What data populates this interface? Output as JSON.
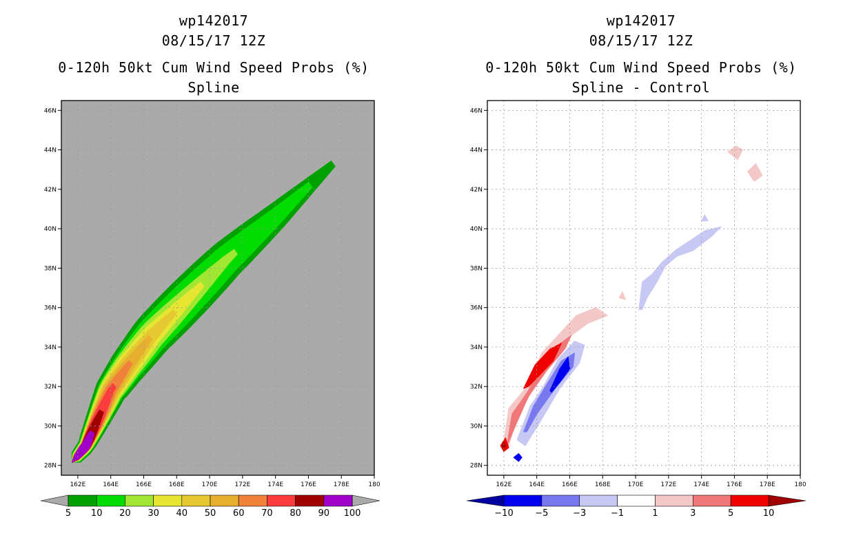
{
  "chart_data": [
    {
      "type": "filled-contour-map",
      "storm": "wp142017",
      "datetime": "08/15/17 12Z",
      "title": "0-120h 50kt Cum Wind Speed Probs (%)",
      "subtitle": "Spline",
      "units": "%",
      "background_color": "#aaaaaa",
      "x_axis": {
        "range": [
          161,
          180
        ],
        "ticks": [
          162,
          164,
          166,
          168,
          170,
          172,
          174,
          176,
          178,
          180
        ],
        "tick_labels": [
          "162E",
          "164E",
          "166E",
          "168E",
          "170E",
          "172E",
          "174E",
          "176E",
          "178E",
          "180"
        ]
      },
      "y_axis": {
        "range": [
          27.5,
          46.5
        ],
        "ticks": [
          28,
          30,
          32,
          34,
          36,
          38,
          40,
          42,
          44,
          46
        ],
        "tick_labels": [
          "28N",
          "30N",
          "32N",
          "34N",
          "36N",
          "38N",
          "40N",
          "42N",
          "44N",
          "46N"
        ]
      },
      "grid": true,
      "colorbar": {
        "levels": [
          "5",
          "10",
          "20",
          "30",
          "40",
          "50",
          "60",
          "70",
          "80",
          "90",
          "100"
        ],
        "colors": [
          "#00a000",
          "#00dc00",
          "#a0e632",
          "#e6e632",
          "#e6c832",
          "#e6af2d",
          "#f0823c",
          "#fa3c3c",
          "#a00000",
          "#a000c8"
        ],
        "under_color": "#aaaaaa",
        "over_color": "#aaaaaa"
      },
      "track": [
        [
          161.9,
          28.4
        ],
        [
          162.5,
          29.0
        ],
        [
          163.2,
          30.3
        ],
        [
          164.0,
          31.8
        ],
        [
          165.0,
          33.0
        ],
        [
          166.5,
          34.6
        ],
        [
          168.5,
          36.3
        ],
        [
          171.0,
          38.4
        ],
        [
          174.0,
          40.6
        ],
        [
          177.5,
          43.3
        ]
      ],
      "bands": [
        {
          "level": 5,
          "color": "#00a000",
          "end": 1.0,
          "max_w": 1.15
        },
        {
          "level": 10,
          "color": "#00dc00",
          "end": 0.92,
          "max_w": 0.88
        },
        {
          "level": 20,
          "color": "#a0e632",
          "end": 0.66,
          "max_w": 0.68
        },
        {
          "level": 30,
          "color": "#e6e632",
          "end": 0.54,
          "max_w": 0.54
        },
        {
          "level": 40,
          "color": "#e6c832",
          "end": 0.44,
          "max_w": 0.42
        },
        {
          "level": 50,
          "color": "#e6af2d",
          "end": 0.35,
          "max_w": 0.33
        },
        {
          "level": 60,
          "color": "#f0823c",
          "end": 0.27,
          "max_w": 0.26
        },
        {
          "level": 70,
          "color": "#fa3c3c",
          "end": 0.2,
          "max_w": 0.2
        },
        {
          "level": 80,
          "color": "#a00000",
          "end": 0.13,
          "max_w": 0.15
        },
        {
          "level": 90,
          "color": "#a000c8",
          "end": 0.075,
          "max_w": 0.13
        }
      ]
    },
    {
      "type": "filled-contour-map",
      "storm": "wp142017",
      "datetime": "08/15/17 12Z",
      "title": "0-120h 50kt Cum Wind Speed Probs (%)",
      "subtitle": "Spline - Control",
      "units": "%",
      "background_color": "#ffffff",
      "x_axis": {
        "range": [
          161,
          180
        ],
        "ticks": [
          162,
          164,
          166,
          168,
          170,
          172,
          174,
          176,
          178,
          180
        ],
        "tick_labels": [
          "162E",
          "164E",
          "166E",
          "168E",
          "170E",
          "172E",
          "174E",
          "176E",
          "178E",
          "180"
        ]
      },
      "y_axis": {
        "range": [
          27.5,
          46.5
        ],
        "ticks": [
          28,
          30,
          32,
          34,
          36,
          38,
          40,
          42,
          44,
          46
        ],
        "tick_labels": [
          "28N",
          "30N",
          "32N",
          "34N",
          "36N",
          "38N",
          "40N",
          "42N",
          "44N",
          "46N"
        ]
      },
      "grid": true,
      "colorbar": {
        "levels": [
          "-10",
          "-5",
          "-3",
          "-1",
          "1",
          "3",
          "5",
          "10"
        ],
        "colors": [
          "#0000a0",
          "#0000f0",
          "#7878f0",
          "#c8c8f5",
          "#ffffff",
          "#f5c8c8",
          "#f07878",
          "#f00000",
          "#a00000"
        ]
      },
      "regions": [
        {
          "name": "neg-1",
          "color": "#c8c8f5",
          "pts": [
            [
              162.8,
              29.3
            ],
            [
              163.6,
              31.0
            ],
            [
              164.4,
              32.0
            ],
            [
              165.3,
              33.4
            ],
            [
              166.3,
              34.3
            ],
            [
              166.9,
              34.1
            ],
            [
              166.6,
              33.2
            ],
            [
              165.4,
              31.9
            ],
            [
              164.2,
              30.2
            ],
            [
              163.3,
              29.0
            ]
          ]
        },
        {
          "name": "neg-3",
          "color": "#7878f0",
          "pts": [
            [
              163.2,
              29.7
            ],
            [
              163.8,
              31.0
            ],
            [
              164.6,
              32.1
            ],
            [
              165.5,
              33.3
            ],
            [
              166.3,
              33.7
            ],
            [
              166.2,
              33.0
            ],
            [
              165.2,
              32.0
            ],
            [
              164.0,
              30.6
            ],
            [
              163.4,
              29.7
            ]
          ]
        },
        {
          "name": "neg-5",
          "color": "#0000f0",
          "pts": [
            [
              164.8,
              31.8
            ],
            [
              165.4,
              32.9
            ],
            [
              165.9,
              33.5
            ],
            [
              166.0,
              32.9
            ],
            [
              165.4,
              32.2
            ],
            [
              164.9,
              31.7
            ]
          ]
        },
        {
          "name": "neg-spot",
          "color": "#0000f0",
          "pts": [
            [
              162.6,
              28.4
            ],
            [
              162.9,
              28.6
            ],
            [
              163.1,
              28.4
            ],
            [
              162.9,
              28.2
            ]
          ]
        },
        {
          "name": "neg-1-ne",
          "color": "#c8c8f5",
          "pts": [
            [
              170.2,
              35.9
            ],
            [
              170.4,
              37.3
            ],
            [
              171.0,
              37.7
            ],
            [
              171.6,
              38.3
            ],
            [
              172.4,
              38.9
            ],
            [
              173.3,
              39.4
            ],
            [
              174.2,
              39.9
            ],
            [
              175.2,
              40.1
            ],
            [
              174.6,
              39.6
            ],
            [
              173.5,
              38.9
            ],
            [
              172.5,
              38.6
            ],
            [
              171.8,
              38.1
            ],
            [
              171.3,
              37.3
            ],
            [
              170.7,
              36.5
            ],
            [
              170.4,
              35.9
            ]
          ]
        },
        {
          "name": "neg-1-speck",
          "color": "#c8c8f5",
          "pts": [
            [
              174.0,
              40.4
            ],
            [
              174.2,
              40.7
            ],
            [
              174.4,
              40.4
            ]
          ]
        },
        {
          "name": "pos-1",
          "color": "#f5c8c8",
          "pts": [
            [
              162.0,
              29.2
            ],
            [
              162.3,
              30.9
            ],
            [
              163.4,
              32.0
            ],
            [
              164.3,
              33.7
            ],
            [
              165.3,
              34.6
            ],
            [
              166.4,
              35.6
            ],
            [
              167.6,
              36.0
            ],
            [
              168.3,
              35.6
            ],
            [
              167.1,
              35.2
            ],
            [
              165.8,
              34.4
            ],
            [
              164.8,
              33.1
            ],
            [
              163.6,
              31.6
            ],
            [
              162.8,
              30.4
            ],
            [
              162.3,
              29.0
            ]
          ]
        },
        {
          "name": "pos-3",
          "color": "#f07878",
          "pts": [
            [
              162.2,
              29.1
            ],
            [
              162.5,
              30.6
            ],
            [
              163.5,
              31.8
            ],
            [
              164.3,
              33.2
            ],
            [
              165.3,
              34.1
            ],
            [
              166.1,
              34.6
            ],
            [
              165.7,
              33.9
            ],
            [
              164.6,
              32.8
            ],
            [
              163.5,
              31.5
            ],
            [
              162.7,
              30.0
            ],
            [
              162.2,
              29.0
            ]
          ]
        },
        {
          "name": "pos-5",
          "color": "#f00000",
          "pts": [
            [
              163.2,
              31.9
            ],
            [
              163.9,
              33.1
            ],
            [
              164.8,
              33.9
            ],
            [
              165.5,
              34.2
            ],
            [
              165.0,
              33.3
            ],
            [
              164.2,
              32.6
            ],
            [
              163.5,
              32.0
            ]
          ]
        },
        {
          "name": "pos-5-b",
          "color": "#f00000",
          "pts": [
            [
              161.8,
              29.0
            ],
            [
              162.1,
              29.4
            ],
            [
              162.3,
              28.9
            ],
            [
              162.0,
              28.7
            ]
          ]
        },
        {
          "name": "pos-10",
          "color": "#a00000",
          "pts": [
            [
              161.9,
              29.0
            ],
            [
              162.0,
              29.2
            ],
            [
              162.1,
              29.0
            ],
            [
              162.0,
              28.8
            ]
          ]
        },
        {
          "name": "pos-ne",
          "color": "#f5c8c8",
          "pts": [
            [
              175.6,
              43.9
            ],
            [
              176.1,
              44.2
            ],
            [
              176.5,
              44.0
            ],
            [
              176.2,
              43.5
            ]
          ]
        },
        {
          "name": "pos-ne2",
          "color": "#f5c8c8",
          "pts": [
            [
              176.8,
              42.9
            ],
            [
              177.3,
              43.3
            ],
            [
              177.7,
              42.7
            ],
            [
              177.2,
              42.4
            ]
          ]
        },
        {
          "name": "pos-small",
          "color": "#f5c8c8",
          "pts": [
            [
              169.0,
              36.5
            ],
            [
              169.2,
              36.8
            ],
            [
              169.4,
              36.4
            ]
          ]
        }
      ]
    }
  ]
}
